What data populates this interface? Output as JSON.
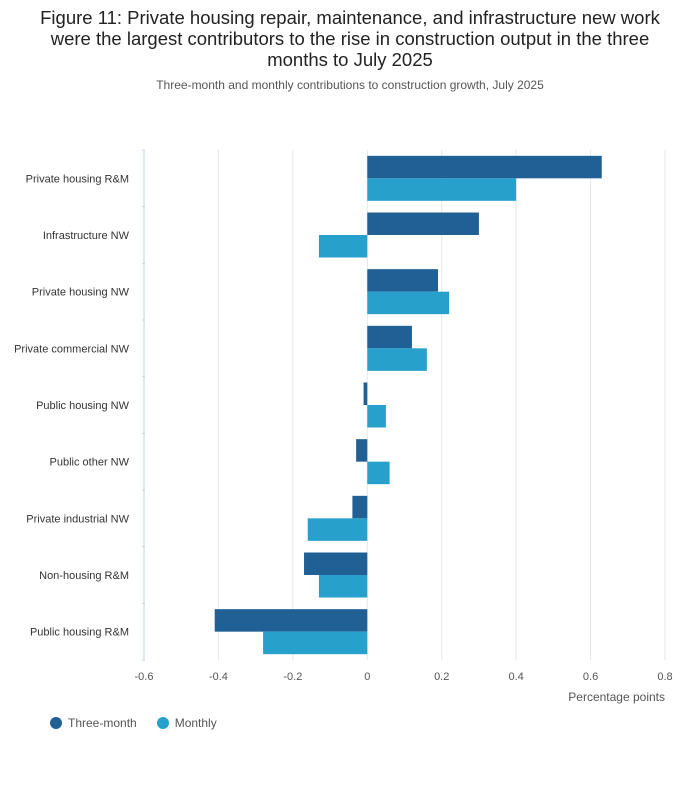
{
  "title": "Figure 11: Private housing repair, maintenance, and infrastructure new work were the largest contributors to the rise in construction output in the three months to July 2025",
  "subtitle": "Three-month and monthly contributions to construction growth, July 2025",
  "colors": {
    "three_month": "#206095",
    "monthly": "#27a0cc",
    "grid": "#e6e6e6",
    "axis": "#c0d6e8"
  },
  "chart_data": {
    "type": "bar",
    "orientation": "horizontal",
    "title": "Figure 11: Private housing repair, maintenance, and infrastructure new work were the largest contributors to the rise in construction output in the three months to July 2025",
    "subtitle": "Three-month and monthly contributions to construction growth, July 2025",
    "xlabel": "Percentage points",
    "ylabel": "",
    "xlim": [
      -0.6,
      0.8
    ],
    "xticks": [
      -0.6,
      -0.4,
      -0.2,
      0,
      0.2,
      0.4,
      0.6,
      0.8
    ],
    "xtick_labels": [
      "-0.6",
      "-0.4",
      "-0.2",
      "0",
      "0.2",
      "0.4",
      "0.6",
      "0.8"
    ],
    "grid": true,
    "legend_position": "bottom-left",
    "categories": [
      "Private housing R&M",
      "Infrastructure NW",
      "Private housing NW",
      "Private commercial NW",
      "Public housing NW",
      "Public other NW",
      "Private industrial NW",
      "Non-housing R&M",
      "Public housing R&M"
    ],
    "series": [
      {
        "name": "Three-month",
        "color": "#206095",
        "values": [
          0.63,
          0.3,
          0.19,
          0.12,
          -0.01,
          -0.03,
          -0.04,
          -0.17,
          -0.41
        ]
      },
      {
        "name": "Monthly",
        "color": "#27a0cc",
        "values": [
          0.4,
          -0.13,
          0.22,
          0.16,
          0.05,
          0.06,
          -0.16,
          -0.13,
          -0.28
        ]
      }
    ]
  }
}
